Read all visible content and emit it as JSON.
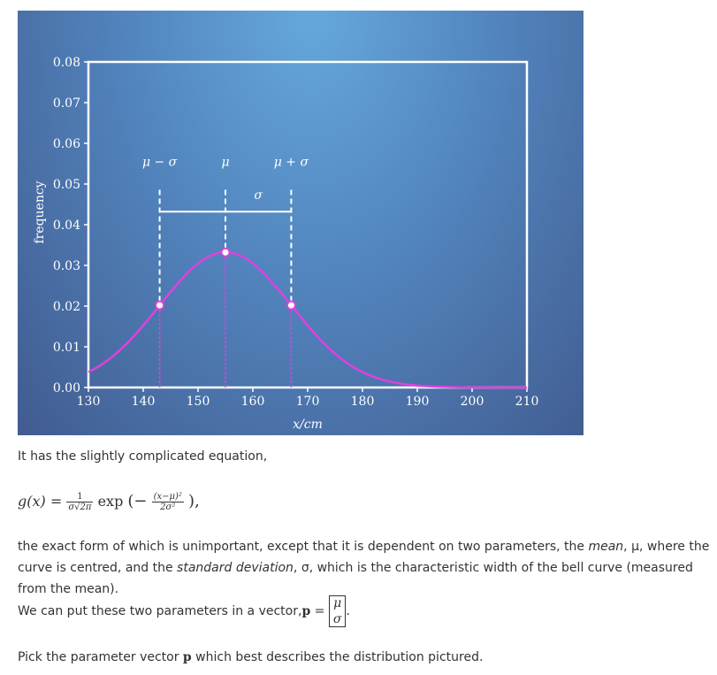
{
  "chart_data": {
    "type": "line",
    "title": "",
    "xlabel": "x/cm",
    "ylabel": "frequency",
    "xlim": [
      130,
      210
    ],
    "ylim": [
      0,
      0.08
    ],
    "x_ticks": [
      "130",
      "140",
      "150",
      "160",
      "170",
      "180",
      "190",
      "200",
      "210"
    ],
    "y_ticks": [
      "0.00",
      "0.01",
      "0.02",
      "0.03",
      "0.04",
      "0.05",
      "0.06",
      "0.07",
      "0.08"
    ],
    "series": [
      {
        "kind": "gaussian",
        "mean": 155,
        "sd": 12,
        "color": "#e040e0"
      }
    ],
    "markers": [
      {
        "x": 143,
        "y": 0.0202
      },
      {
        "x": 155,
        "y": 0.0332
      },
      {
        "x": 167,
        "y": 0.0202
      }
    ],
    "annotations": {
      "mu_minus_sigma": "μ − σ",
      "mu": "μ",
      "mu_plus_sigma": "μ + σ",
      "sigma": "σ"
    },
    "background_colors": [
      "#65a8dc",
      "#415b8f"
    ],
    "grid": false
  },
  "text": {
    "intro": "It has the slightly complicated equation,",
    "equation": {
      "lhs": "g(x) =",
      "frac1_num": "1",
      "frac1_den": "σ√2π",
      "exp": "exp",
      "frac2_num": "(x−μ)²",
      "frac2_den": "2σ²",
      "open": "(−",
      "close": "),"
    },
    "para2_a": "the exact form of which is unimportant, except that it is dependent on two parameters, the ",
    "para2_mean": "mean",
    "para2_b": ", μ, where the curve is centred, and the ",
    "para2_sd": "standard deviation",
    "para2_c": ", σ, which is the characteristic width of the bell curve (measured from the mean).",
    "para3": "We can put these two parameters in a vector, ",
    "para3_p": "p",
    "para3_eq": " = ",
    "vec_top": "μ",
    "vec_bottom": "σ",
    "para3_end": ".",
    "para4_a": "Pick the parameter vector ",
    "para4_p": "p",
    "para4_b": " which best describes the distribution pictured."
  }
}
